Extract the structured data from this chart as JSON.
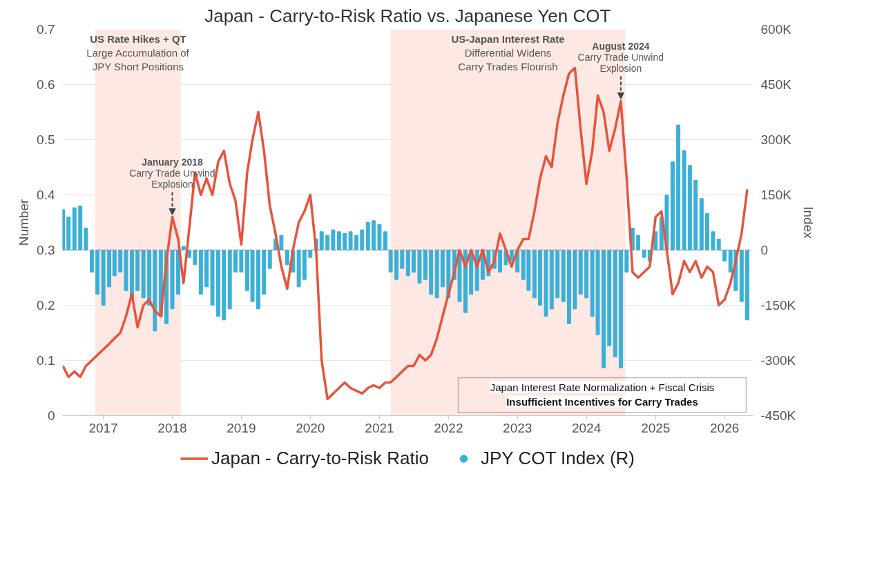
{
  "chart_data": {
    "type": "line",
    "title": "Japan - Carry-to-Risk Ratio vs. Japanese Yen COT",
    "ylabel": "Number",
    "y2label": "Index",
    "xlim": [
      "2016-05-30",
      "2026-06-01"
    ],
    "xticks": [
      {
        "value": "2017-01-01",
        "label": "2017"
      },
      {
        "value": "2018-01-01",
        "label": "2018"
      },
      {
        "value": "2019-01-01",
        "label": "2019"
      },
      {
        "value": "2020-01-01",
        "label": "2020"
      },
      {
        "value": "2021-01-01",
        "label": "2021"
      },
      {
        "value": "2022-01-01",
        "label": "2022"
      },
      {
        "value": "2023-01-01",
        "label": "2023"
      },
      {
        "value": "2024-01-01",
        "label": "2024"
      },
      {
        "value": "2025-01-01",
        "label": "2025"
      },
      {
        "value": "2026-01-01",
        "label": "2026"
      }
    ],
    "ylim": [
      0,
      0.7
    ],
    "yticks": [
      0,
      0.1,
      0.2,
      0.3,
      0.4,
      0.5,
      0.6,
      0.7
    ],
    "y2lim": [
      -450000,
      600000
    ],
    "y2ticks": [
      {
        "value": -450000,
        "label": "-450K"
      },
      {
        "value": -300000,
        "label": "-300K"
      },
      {
        "value": -150000,
        "label": "-150K"
      },
      {
        "value": 0,
        "label": "0"
      },
      {
        "value": 150000,
        "label": "150K"
      },
      {
        "value": 300000,
        "label": "300K"
      },
      {
        "value": 450000,
        "label": "450K"
      },
      {
        "value": 600000,
        "label": "600K"
      }
    ],
    "grid": "y",
    "legend": "bottom",
    "x": [
      "2016-06",
      "2016-07",
      "2016-08",
      "2016-09",
      "2016-10",
      "2016-11",
      "2016-12",
      "2017-01",
      "2017-02",
      "2017-03",
      "2017-04",
      "2017-05",
      "2017-06",
      "2017-07",
      "2017-08",
      "2017-09",
      "2017-10",
      "2017-11",
      "2017-12",
      "2018-01",
      "2018-02",
      "2018-03",
      "2018-04",
      "2018-05",
      "2018-06",
      "2018-07",
      "2018-08",
      "2018-09",
      "2018-10",
      "2018-11",
      "2018-12",
      "2019-01",
      "2019-02",
      "2019-03",
      "2019-04",
      "2019-05",
      "2019-06",
      "2019-07",
      "2019-08",
      "2019-09",
      "2019-10",
      "2019-11",
      "2019-12",
      "2020-01",
      "2020-02",
      "2020-03",
      "2020-04",
      "2020-05",
      "2020-06",
      "2020-07",
      "2020-08",
      "2020-09",
      "2020-10",
      "2020-11",
      "2020-12",
      "2021-01",
      "2021-02",
      "2021-03",
      "2021-04",
      "2021-05",
      "2021-06",
      "2021-07",
      "2021-08",
      "2021-09",
      "2021-10",
      "2021-11",
      "2021-12",
      "2022-01",
      "2022-02",
      "2022-03",
      "2022-04",
      "2022-05",
      "2022-06",
      "2022-07",
      "2022-08",
      "2022-09",
      "2022-10",
      "2022-11",
      "2022-12",
      "2023-01",
      "2023-02",
      "2023-03",
      "2023-04",
      "2023-05",
      "2023-06",
      "2023-07",
      "2023-08",
      "2023-09",
      "2023-10",
      "2023-11",
      "2023-12",
      "2024-01",
      "2024-02",
      "2024-03",
      "2024-04",
      "2024-05",
      "2024-06",
      "2024-07",
      "2024-08",
      "2024-09",
      "2024-10",
      "2024-11",
      "2024-12",
      "2025-01",
      "2025-02",
      "2025-03",
      "2025-04",
      "2025-05",
      "2025-06",
      "2025-07",
      "2025-08",
      "2025-09",
      "2025-10",
      "2025-11",
      "2025-12",
      "2026-01",
      "2026-02",
      "2026-03",
      "2026-04",
      "2026-05"
    ],
    "series": [
      {
        "name": "Japan - Carry-to-Risk Ratio",
        "color": "#e8533a",
        "values": [
          0.09,
          0.07,
          0.08,
          0.07,
          0.09,
          0.1,
          0.11,
          0.12,
          0.13,
          0.14,
          0.15,
          0.18,
          0.22,
          0.16,
          0.2,
          0.21,
          0.19,
          0.18,
          0.28,
          0.36,
          0.32,
          0.24,
          0.34,
          0.44,
          0.4,
          0.43,
          0.4,
          0.46,
          0.48,
          0.42,
          0.39,
          0.31,
          0.44,
          0.5,
          0.55,
          0.48,
          0.38,
          0.33,
          0.27,
          0.23,
          0.3,
          0.35,
          0.37,
          0.4,
          0.3,
          0.1,
          0.03,
          0.04,
          0.05,
          0.06,
          0.05,
          0.045,
          0.04,
          0.05,
          0.055,
          0.05,
          0.06,
          0.06,
          0.07,
          0.08,
          0.09,
          0.09,
          0.11,
          0.1,
          0.11,
          0.14,
          0.18,
          0.22,
          0.26,
          0.3,
          0.27,
          0.3,
          0.27,
          0.3,
          0.26,
          0.28,
          0.33,
          0.3,
          0.27,
          0.3,
          0.32,
          0.32,
          0.37,
          0.43,
          0.47,
          0.45,
          0.53,
          0.58,
          0.62,
          0.63,
          0.52,
          0.42,
          0.48,
          0.58,
          0.55,
          0.48,
          0.52,
          0.57,
          0.43,
          0.26,
          0.25,
          0.26,
          0.27,
          0.36,
          0.37,
          0.3,
          0.22,
          0.24,
          0.28,
          0.26,
          0.28,
          0.25,
          0.27,
          0.26,
          0.2,
          0.21,
          0.24,
          0.28,
          0.33,
          0.41
        ]
      },
      {
        "name": "JPY COT Index (R)",
        "type": "bar",
        "axis": "y2",
        "color": "#3ab0d8",
        "values": [
          110000,
          90000,
          115000,
          120000,
          60000,
          -60000,
          -120000,
          -150000,
          -100000,
          -70000,
          -60000,
          -110000,
          -130000,
          -110000,
          -130000,
          -150000,
          -220000,
          -180000,
          -200000,
          -160000,
          -120000,
          10000,
          -20000,
          -40000,
          -120000,
          -100000,
          -150000,
          -180000,
          -190000,
          -160000,
          -60000,
          -60000,
          -110000,
          -140000,
          -160000,
          -120000,
          -50000,
          30000,
          40000,
          -40000,
          -60000,
          -100000,
          -80000,
          -20000,
          30000,
          50000,
          40000,
          55000,
          50000,
          45000,
          50000,
          40000,
          55000,
          75000,
          80000,
          70000,
          50000,
          -60000,
          -80000,
          -50000,
          -70000,
          -60000,
          -90000,
          -80000,
          -120000,
          -130000,
          -100000,
          -130000,
          -80000,
          -140000,
          -170000,
          -120000,
          -110000,
          -80000,
          -70000,
          -50000,
          -60000,
          -40000,
          -30000,
          -60000,
          -80000,
          -110000,
          -130000,
          -150000,
          -180000,
          -160000,
          -130000,
          -140000,
          -200000,
          -160000,
          -120000,
          -130000,
          -180000,
          -230000,
          -320000,
          -260000,
          -290000,
          -320000,
          -60000,
          60000,
          40000,
          -20000,
          -30000,
          50000,
          90000,
          150000,
          240000,
          340000,
          270000,
          230000,
          190000,
          140000,
          100000,
          50000,
          30000,
          -30000,
          -60000,
          -110000,
          -140000,
          -190000
        ]
      }
    ],
    "ref_lines": [
      {
        "axis": "y2",
        "value": 0,
        "color": "#999999",
        "line_style": "dashed"
      }
    ],
    "bands": [
      {
        "axis": "x",
        "from": "2016-11-20",
        "to": "2018-02-15",
        "color": "#fde8e4",
        "label": "US Rate Hikes + QT\nLarge Accumulation of\nJPY Short Positions"
      },
      {
        "axis": "x",
        "from": "2021-03-01",
        "to": "2024-07-25",
        "color": "#fde8e4",
        "label": "US-Japan Interest Rate\nDifferential Widens\nCarry Trades Flourish"
      }
    ],
    "annotations": [
      {
        "text": "January 2018\nCarry Trade Unwind\nExplosion",
        "x": "2018-01",
        "y": 0.36
      },
      {
        "text": "August 2024\nCarry Trade Unwind\nExplosion",
        "x": "2024-07",
        "y": 0.57
      },
      "Japan Interest Rate Normalization + Fiscal Crisis\nInsufficient Incentives for Carry Trades"
    ]
  }
}
